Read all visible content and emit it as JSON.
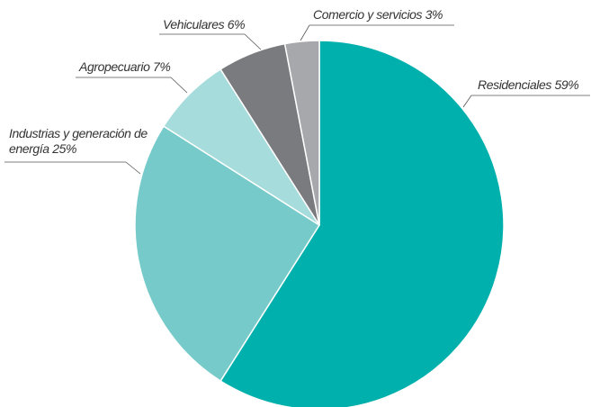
{
  "chart_data": {
    "type": "pie",
    "categories": [
      "Residenciales",
      "Industrias y generación de energía",
      "Agropecuario",
      "Vehiculares",
      "Comercio y servicios"
    ],
    "values": [
      59,
      25,
      7,
      6,
      3
    ],
    "value_labels": [
      "59%",
      "25%",
      "7%",
      "6%",
      "3%"
    ],
    "colors": [
      "#00b0ad",
      "#76cbca",
      "#a6dcdb",
      "#797b7f",
      "#a6a8ab"
    ]
  }
}
